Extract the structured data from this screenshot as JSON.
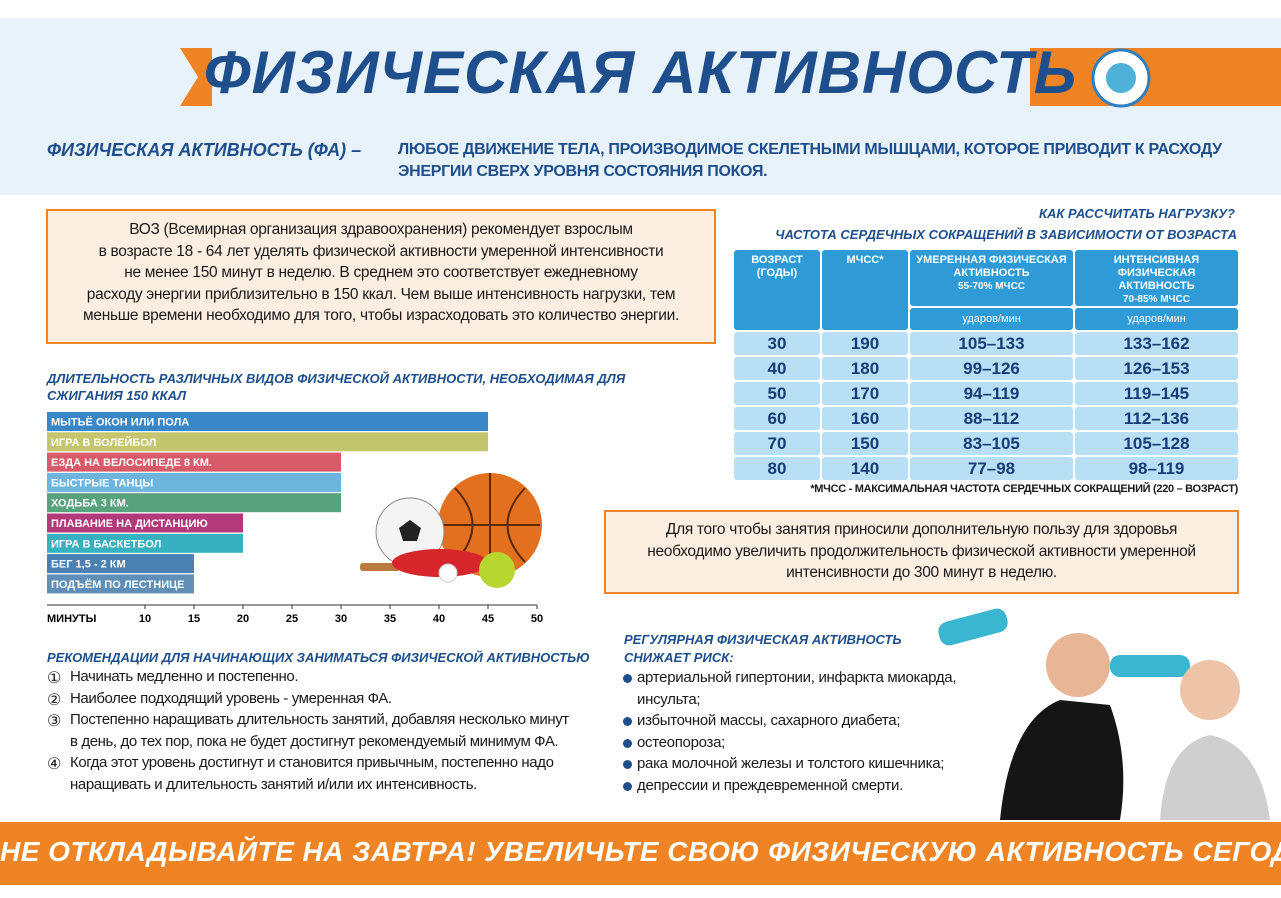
{
  "header": {
    "title": "ФИЗИЧЕСКАЯ АКТИВНОСТЬ"
  },
  "definition": {
    "term": "ФИЗИЧЕСКАЯ АКТИВНОСТЬ (ФА) –",
    "lines": [
      "ЛЮБОЕ ДВИЖЕНИЕ ТЕЛА, ПРОИЗВОДИМОЕ СКЕЛЕТНЫМИ МЫШЦАМИ, КОТОРОЕ ПРИВОДИТ К РАСХОДУ",
      "ЭНЕРГИИ СВЕРХ УРОВНЯ СОСТОЯНИЯ ПОКОЯ."
    ]
  },
  "who_note": {
    "lines": [
      "ВОЗ (Всемирная организация здравоохранения) рекомендует взрослым",
      "в возрасте 18 - 64 лет уделять физической активности умеренной интенсивности",
      "не менее 150 минут в неделю. В среднем это соответствует ежедневному",
      "расходу энергии приблизительно в 150 ккал. Чем выше интенсивность нагрузки, тем",
      "меньше времени необходимо для того, чтобы израсходовать это количество энергии."
    ]
  },
  "chart_data": {
    "type": "bar",
    "orientation": "horizontal",
    "title": "ДЛИТЕЛЬНОСТЬ РАЗЛИЧНЫХ ВИДОВ ФИЗИЧЕСКОЙ АКТИВНОСТИ, НЕОБХОДИМАЯ ДЛЯ СЖИГАНИЯ 150 ККАЛ",
    "categories": [
      "МЫТЬЁ ОКОН ИЛИ ПОЛА",
      "ИГРА В ВОЛЕЙБОЛ",
      "ЕЗДА НА ВЕЛОСИПЕДЕ 8 КМ.",
      "БЫСТРЫЕ ТАНЦЫ",
      "ХОДЬБА 3 КМ.",
      "ПЛАВАНИЕ НА ДИСТАНЦИЮ",
      "ИГРА В БАСКЕТБОЛ",
      "БЕГ 1,5 - 2 КМ",
      "ПОДЪЁМ ПО ЛЕСТНИЦЕ"
    ],
    "values": [
      45,
      45,
      30,
      30,
      30,
      20,
      20,
      15,
      15
    ],
    "colors": [
      "#3a87c8",
      "#c3c66d",
      "#d95a69",
      "#6db5dd",
      "#58a27d",
      "#b23a7b",
      "#37b0c0",
      "#4b80b2",
      "#5f8fb6"
    ],
    "xlabel": "МИНУТЫ",
    "xlim": [
      0,
      50
    ],
    "xticks": [
      10,
      15,
      20,
      25,
      30,
      35,
      40,
      45,
      50
    ]
  },
  "recommendations": {
    "title": "РЕКОМЕНДАЦИИ ДЛЯ НАЧИНАЮЩИХ ЗАНИМАТЬСЯ ФИЗИЧЕСКОЙ АКТИВНОСТЬЮ",
    "items": [
      {
        "marker": "①",
        "lines": [
          "Начинать медленно и постепенно."
        ]
      },
      {
        "marker": "②",
        "lines": [
          "Наиболее подходящий уровень - умеренная ФА."
        ]
      },
      {
        "marker": "③",
        "lines": [
          "Постепенно наращивать длительность занятий, добавляя несколько минут",
          "в день, до тех пор, пока не будет достигнут рекомендуемый минимум ФА."
        ]
      },
      {
        "marker": "④",
        "lines": [
          "Когда этот уровень достигнут и становится привычным, постепенно надо",
          "наращивать и длительность занятий и/или их интенсивность."
        ]
      }
    ]
  },
  "heart_rate": {
    "question": "КАК РАССЧИТАТЬ НАГРУЗКУ?",
    "title": "ЧАСТОТА СЕРДЕЧНЫХ СОКРАЩЕНИЙ В ЗАВИСИМОСТИ ОТ ВОЗРАСТА",
    "columns": [
      "ВОЗРАСТ (ГОДЫ)",
      "МЧСС*",
      "УМЕРЕННАЯ ФИЗИЧЕСКАЯ АКТИВНОСТЬ",
      "ИНТЕНСИВНАЯ ФИЗИЧЕСКАЯ АКТИВНОСТЬ"
    ],
    "ranges": [
      "55-70% МЧСС",
      "70-85% МЧСС"
    ],
    "units": [
      "ударов/мин",
      "ударов/мин"
    ],
    "rows": [
      [
        30,
        190,
        "105–133",
        "133–162"
      ],
      [
        40,
        180,
        "99–126",
        "126–153"
      ],
      [
        50,
        170,
        "94–119",
        "119–145"
      ],
      [
        60,
        160,
        "88–112",
        "112–136"
      ],
      [
        70,
        150,
        "83–105",
        "105–128"
      ],
      [
        80,
        140,
        "77–98",
        "98–119"
      ]
    ],
    "footnote": "*МЧСС - МАКСИМАЛЬНАЯ ЧАСТОТА СЕРДЕЧНЫХ СОКРАЩЕНИЙ (220 – ВОЗРАСТ)"
  },
  "extra_note": {
    "lines": [
      "Для того чтобы занятия приносили дополнительную пользу для здоровья",
      "необходимо увеличить продолжительность физической активности умеренной",
      "интенсивности до 300 минут в неделю."
    ]
  },
  "risks": {
    "title_lines": [
      "РЕГУЛЯРНАЯ ФИЗИЧЕСКАЯ АКТИВНОСТЬ",
      "СНИЖАЕТ РИСК:"
    ],
    "items": [
      [
        "артериальной гипертонии, инфаркта миокарда,",
        "инсульта;"
      ],
      [
        "избыточной массы, сахарного диабета;"
      ],
      [
        "остеопороза;"
      ],
      [
        "рака молочной железы и толстого кишечника;"
      ],
      [
        "депрессии и преждевременной смерти."
      ]
    ]
  },
  "footer": {
    "text": "НЕ ОТКЛАДЫВАЙТЕ НА ЗАВТРА! УВЕЛИЧЬТЕ СВОЮ ФИЗИЧЕСКУЮ АКТИВНОСТЬ СЕГОДНЯ!"
  }
}
